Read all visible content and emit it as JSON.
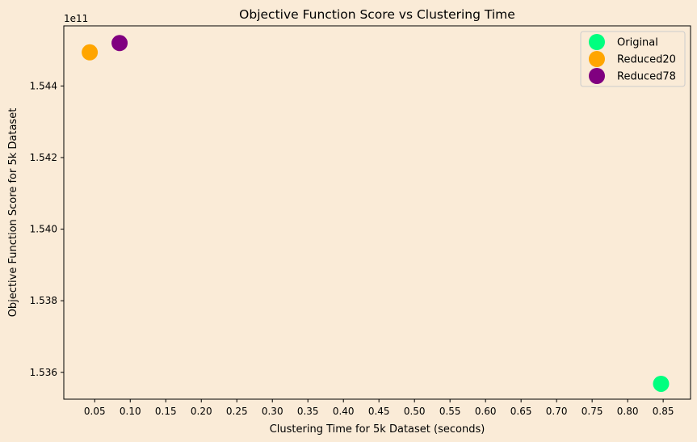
{
  "chart_data": {
    "type": "scatter",
    "title": "Objective Function Score vs Clustering Time",
    "xlabel": "Clustering Time for 5k Dataset (seconds)",
    "ylabel": "Objective Function Score for 5k Dataset",
    "offset_label": "1e11",
    "xlim": [
      0.0065,
      0.8885
    ],
    "ylim": [
      1.53525,
      1.54568
    ],
    "y_scale_factor": 100000000000,
    "xticks": [
      0.05,
      0.1,
      0.15,
      0.2,
      0.25,
      0.3,
      0.35,
      0.4,
      0.45,
      0.5,
      0.55,
      0.6,
      0.65,
      0.7,
      0.75,
      0.8,
      0.85
    ],
    "xtick_labels": [
      "0.05",
      "0.10",
      "0.15",
      "0.20",
      "0.25",
      "0.30",
      "0.35",
      "0.40",
      "0.45",
      "0.50",
      "0.55",
      "0.60",
      "0.65",
      "0.70",
      "0.75",
      "0.80",
      "0.85"
    ],
    "yticks": [
      1.536,
      1.538,
      1.54,
      1.542,
      1.544
    ],
    "ytick_labels": [
      "1.536",
      "1.538",
      "1.540",
      "1.542",
      "1.544"
    ],
    "grid": false,
    "legend_position": "top-right",
    "series": [
      {
        "name": "Original",
        "color": "#00ff7f",
        "x": [
          0.847
        ],
        "y": [
          1.53568
        ]
      },
      {
        "name": "Reduced20",
        "color": "#ffa500",
        "x": [
          0.043
        ],
        "y": [
          1.54494
        ]
      },
      {
        "name": "Reduced78",
        "color": "#800080",
        "x": [
          0.085
        ],
        "y": [
          1.5452
        ]
      }
    ]
  }
}
